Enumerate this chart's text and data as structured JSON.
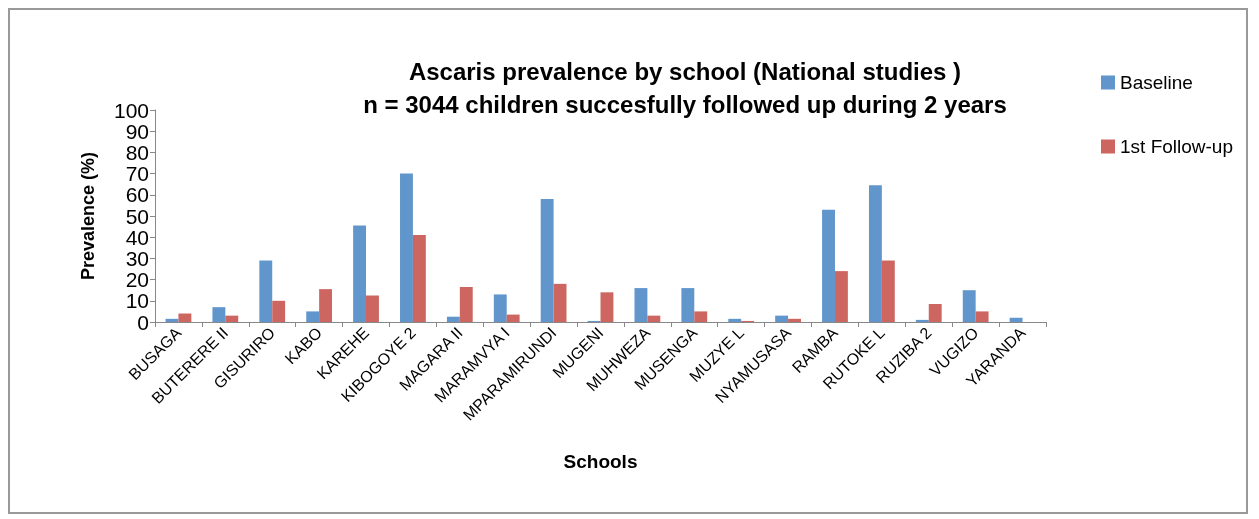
{
  "chart_data": {
    "type": "bar",
    "title": "Ascaris prevalence by school (National studies )\nn = 3044 children succesfully followed up during 2 years",
    "xlabel": "Schools",
    "ylabel": "Prevalence (%)",
    "categories": [
      "BUSAGA",
      "BUTERERE II",
      "GISURIRO",
      "KABO",
      "KAREHE",
      "KIBOGOYE 2",
      "MAGARA II",
      "MARAMVYA I",
      "MPARAMIRUNDI",
      "MUGENI",
      "MUHWEZA",
      "MUSENGA",
      "MUZYE L",
      "NYAMUSASA",
      "RAMBA",
      "RUTOKE L",
      "RUZIBA 2",
      "VUGIZO",
      "YARANDA"
    ],
    "series": [
      {
        "name": "Baseline",
        "color": "#6096cb",
        "values": [
          1.5,
          7,
          29,
          5,
          45.5,
          70,
          2.5,
          13,
          58,
          0.5,
          16,
          16,
          1.5,
          3,
          53,
          64.5,
          1,
          15,
          2
        ]
      },
      {
        "name": "1st Follow-up",
        "color": "#cd6660",
        "values": [
          4,
          3,
          10,
          15.5,
          12.5,
          41,
          16.5,
          3.5,
          18,
          14,
          3,
          5,
          0.5,
          1.5,
          24,
          29,
          8.5,
          5,
          null
        ]
      }
    ],
    "ylim": [
      0,
      100
    ],
    "yticks": [
      0,
      10,
      20,
      30,
      40,
      50,
      60,
      70,
      80,
      90,
      100
    ],
    "grid": false,
    "legend": "top right"
  }
}
